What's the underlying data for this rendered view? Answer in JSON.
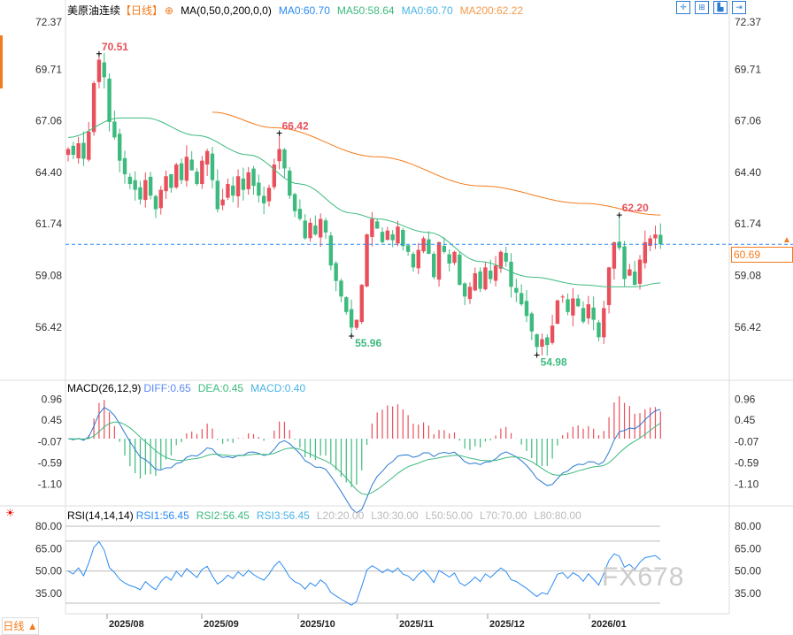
{
  "header": {
    "title": "美原油连续",
    "period": "【日线】",
    "ma_label": "MA(0,50,0,200,0,0)",
    "ma0": "MA0:60.70",
    "ma50": "MA50:58.64",
    "ma0b": "MA0:60.70",
    "ma200": "MA200:62.22"
  },
  "macd_header": {
    "label": "MACD(26,12,9)",
    "diff": "DIFF:0.65",
    "dea": "DEA:0.45",
    "macd": "MACD:0.40"
  },
  "rsi_header": {
    "label": "RSI(14,14,14)",
    "rsi1": "RSI1:56.45",
    "rsi2": "RSI2:56.45",
    "rsi3": "RSI3:56.45",
    "l20": "L20:20.00",
    "l30": "L30:30.00",
    "l50": "L50:50.00",
    "l70": "L70:70.00",
    "l80": "L80:80.00"
  },
  "bottom_tab": "日线 ▲",
  "watermark": "FX678",
  "last_price": "60.69",
  "colors": {
    "up": "#e8505b",
    "down": "#3dba7e",
    "ma50": "#3dba7e",
    "ma200": "#f47b1b",
    "diff": "#2a7ad2",
    "dea": "#3dba7e"
  },
  "chart_data": {
    "type": "candlestick",
    "title": "美原油连续 日线",
    "price_ticks": [
      "72.37",
      "69.71",
      "67.06",
      "64.40",
      "61.74",
      "59.08",
      "56.42"
    ],
    "macd_ticks": [
      "0.96",
      "0.45",
      "-0.07",
      "-0.59",
      "-1.10"
    ],
    "rsi_ticks": [
      "80.00",
      "65.00",
      "50.00",
      "35.00"
    ],
    "x_labels": [
      "2025/08",
      "2025/09",
      "2025/10",
      "2025/11",
      "2025/12",
      "2026/01"
    ],
    "annotations": [
      {
        "text": "70.51",
        "type": "high"
      },
      {
        "text": "66.42",
        "type": "high"
      },
      {
        "text": "55.96",
        "type": "low"
      },
      {
        "text": "54.98",
        "type": "low"
      },
      {
        "text": "62.20",
        "type": "high"
      }
    ],
    "ylim": [
      54.4,
      72.37
    ],
    "closes": [
      65.6,
      65.3,
      65.9,
      65.1,
      66.5,
      69.0,
      70.2,
      69.3,
      67.0,
      66.2,
      65.0,
      64.3,
      63.8,
      63.5,
      63.0,
      64.0,
      63.2,
      62.5,
      63.5,
      64.2,
      63.6,
      64.8,
      64.0,
      65.2,
      64.5,
      63.8,
      65.0,
      65.5,
      64.0,
      62.5,
      63.0,
      63.8,
      63.2,
      64.2,
      63.5,
      64.4,
      63.7,
      63.2,
      62.8,
      63.6,
      64.8,
      65.6,
      64.6,
      63.2,
      62.4,
      62.0,
      61.0,
      61.8,
      61.2,
      62.0,
      61.3,
      59.6,
      58.8,
      58.0,
      57.2,
      56.4,
      56.8,
      58.6,
      61.2,
      62.0,
      61.5,
      60.8,
      61.4,
      60.9,
      61.6,
      60.6,
      60.3,
      59.5,
      60.4,
      61.0,
      60.2,
      59.0,
      60.8,
      60.3,
      59.7,
      60.3,
      58.6,
      58.0,
      58.5,
      59.2,
      58.4,
      59.5,
      58.9,
      59.6,
      60.3,
      59.8,
      58.5,
      58.2,
      57.6,
      57.0,
      56.2,
      55.4,
      55.8,
      55.5,
      56.5,
      57.8,
      58.0,
      57.2,
      57.9,
      57.5,
      56.7,
      57.6,
      56.8,
      55.9,
      57.4,
      59.5,
      60.8,
      60.5,
      58.9,
      59.4,
      58.6,
      59.9,
      60.8,
      61.0,
      61.2,
      60.69
    ],
    "ma50": [
      [
        0,
        66.2
      ],
      [
        10,
        67.2
      ],
      [
        15,
        67.2
      ],
      [
        25,
        66.3
      ],
      [
        35,
        65.3
      ],
      [
        45,
        63.8
      ],
      [
        55,
        62.3
      ],
      [
        60,
        62.0
      ],
      [
        70,
        61.3
      ],
      [
        80,
        59.8
      ],
      [
        90,
        59.0
      ],
      [
        100,
        58.6
      ],
      [
        105,
        58.5
      ],
      [
        110,
        58.5
      ],
      [
        115,
        58.7
      ]
    ],
    "ma200": [
      [
        28,
        67.5
      ],
      [
        40,
        66.7
      ],
      [
        60,
        65.2
      ],
      [
        80,
        63.7
      ],
      [
        100,
        62.8
      ],
      [
        115,
        62.2
      ]
    ],
    "extremes": [
      {
        "index": 6,
        "value": 70.51
      },
      {
        "index": 41,
        "value": 66.42
      },
      {
        "index": 55,
        "value": 55.96
      },
      {
        "index": 91,
        "value": 54.98
      },
      {
        "index": 107,
        "value": 62.2
      }
    ]
  }
}
